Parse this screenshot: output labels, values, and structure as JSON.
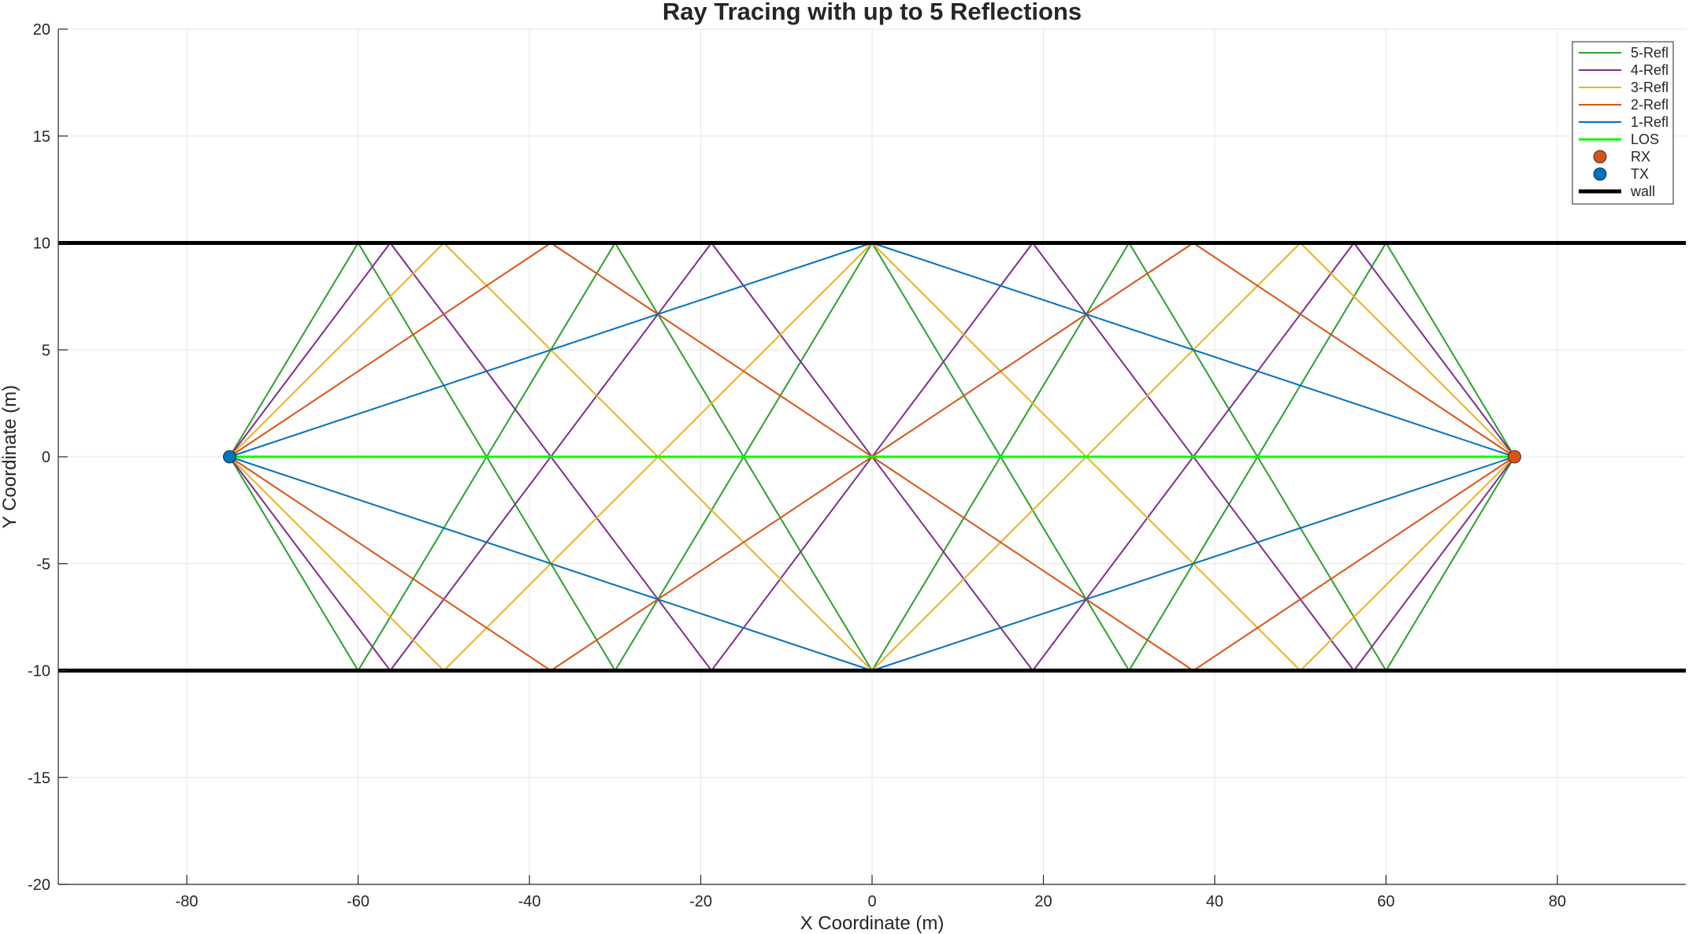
{
  "chart_data": {
    "type": "line",
    "title": "Ray Tracing with up to 5 Reflections",
    "xlabel": "X Coordinate (m)",
    "ylabel": "Y Coordinate (m)",
    "xlim": [
      -95,
      95
    ],
    "ylim": [
      -20,
      20
    ],
    "xticks": [
      -80,
      -60,
      -40,
      -20,
      0,
      20,
      40,
      60,
      80
    ],
    "yticks": [
      -20,
      -15,
      -10,
      -5,
      0,
      5,
      10,
      15,
      20
    ],
    "grid": true,
    "legend_position": "top-right",
    "legend": [
      "5-Refl",
      "4-Refl",
      "3-Refl",
      "2-Refl",
      "1-Refl",
      "LOS",
      "RX",
      "TX",
      "wall"
    ],
    "walls": {
      "name": "wall",
      "color": "#000000",
      "y": [
        10,
        -10
      ],
      "x": [
        -95,
        95
      ]
    },
    "tx": {
      "name": "TX",
      "color": "#0072BD",
      "x": -75,
      "y": 0
    },
    "rx": {
      "name": "RX",
      "color": "#D95319",
      "x": 75,
      "y": 0
    },
    "series": [
      {
        "name": "LOS",
        "color": "#00FF00",
        "paths": [
          [
            [
              -75,
              0
            ],
            [
              75,
              0
            ]
          ]
        ]
      },
      {
        "name": "1-Refl",
        "color": "#0072BD",
        "paths": [
          [
            [
              -75,
              0
            ],
            [
              0,
              10
            ],
            [
              75,
              0
            ]
          ],
          [
            [
              -75,
              0
            ],
            [
              0,
              -10
            ],
            [
              75,
              0
            ]
          ]
        ]
      },
      {
        "name": "2-Refl",
        "color": "#D95319",
        "paths": [
          [
            [
              -75,
              0
            ],
            [
              -37.5,
              10
            ],
            [
              37.5,
              -10
            ],
            [
              75,
              0
            ]
          ],
          [
            [
              -75,
              0
            ],
            [
              -37.5,
              -10
            ],
            [
              37.5,
              10
            ],
            [
              75,
              0
            ]
          ]
        ]
      },
      {
        "name": "3-Refl",
        "color": "#EDB120",
        "paths": [
          [
            [
              -75,
              0
            ],
            [
              -50,
              10
            ],
            [
              0,
              -10
            ],
            [
              50,
              10
            ],
            [
              75,
              0
            ]
          ],
          [
            [
              -75,
              0
            ],
            [
              -50,
              -10
            ],
            [
              0,
              10
            ],
            [
              50,
              -10
            ],
            [
              75,
              0
            ]
          ]
        ]
      },
      {
        "name": "4-Refl",
        "color": "#7E2F8E",
        "paths": [
          [
            [
              -75,
              0
            ],
            [
              -56.25,
              10
            ],
            [
              -18.75,
              -10
            ],
            [
              18.75,
              10
            ],
            [
              56.25,
              -10
            ],
            [
              75,
              0
            ]
          ],
          [
            [
              -75,
              0
            ],
            [
              -56.25,
              -10
            ],
            [
              -18.75,
              10
            ],
            [
              18.75,
              -10
            ],
            [
              56.25,
              10
            ],
            [
              75,
              0
            ]
          ]
        ]
      },
      {
        "name": "5-Refl",
        "color": "#2CA02C",
        "paths": [
          [
            [
              -75,
              0
            ],
            [
              -60,
              10
            ],
            [
              -30,
              -10
            ],
            [
              0,
              10
            ],
            [
              30,
              -10
            ],
            [
              60,
              10
            ],
            [
              75,
              0
            ]
          ],
          [
            [
              -75,
              0
            ],
            [
              -60,
              -10
            ],
            [
              -30,
              10
            ],
            [
              0,
              -10
            ],
            [
              30,
              10
            ],
            [
              60,
              -10
            ],
            [
              75,
              0
            ]
          ]
        ]
      }
    ]
  }
}
